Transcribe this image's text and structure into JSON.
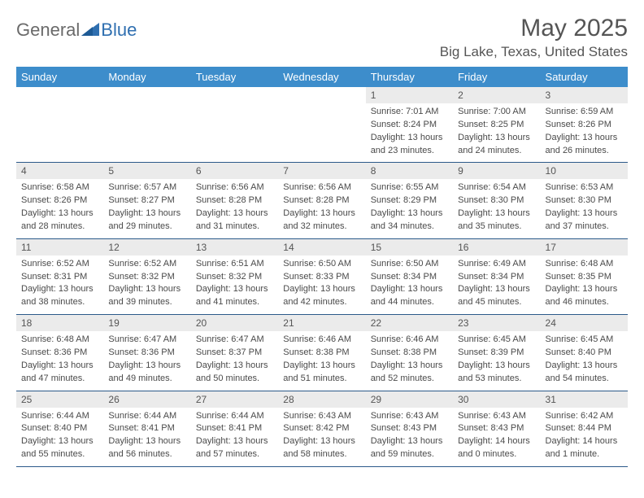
{
  "brand": {
    "part1": "General",
    "part2": "Blue"
  },
  "title": "May 2025",
  "location": "Big Lake, Texas, United States",
  "colors": {
    "header_bg": "#3d8dcb",
    "header_text": "#ffffff",
    "daynum_bg": "#ebebeb",
    "text": "#555555",
    "row_border": "#2c5a8a",
    "logo_gray": "#6a6a6a",
    "logo_blue": "#2f6fb0"
  },
  "day_headers": [
    "Sunday",
    "Monday",
    "Tuesday",
    "Wednesday",
    "Thursday",
    "Friday",
    "Saturday"
  ],
  "weeks": [
    [
      null,
      null,
      null,
      null,
      {
        "n": "1",
        "sr": "Sunrise: 7:01 AM",
        "ss": "Sunset: 8:24 PM",
        "dl1": "Daylight: 13 hours",
        "dl2": "and 23 minutes."
      },
      {
        "n": "2",
        "sr": "Sunrise: 7:00 AM",
        "ss": "Sunset: 8:25 PM",
        "dl1": "Daylight: 13 hours",
        "dl2": "and 24 minutes."
      },
      {
        "n": "3",
        "sr": "Sunrise: 6:59 AM",
        "ss": "Sunset: 8:26 PM",
        "dl1": "Daylight: 13 hours",
        "dl2": "and 26 minutes."
      }
    ],
    [
      {
        "n": "4",
        "sr": "Sunrise: 6:58 AM",
        "ss": "Sunset: 8:26 PM",
        "dl1": "Daylight: 13 hours",
        "dl2": "and 28 minutes."
      },
      {
        "n": "5",
        "sr": "Sunrise: 6:57 AM",
        "ss": "Sunset: 8:27 PM",
        "dl1": "Daylight: 13 hours",
        "dl2": "and 29 minutes."
      },
      {
        "n": "6",
        "sr": "Sunrise: 6:56 AM",
        "ss": "Sunset: 8:28 PM",
        "dl1": "Daylight: 13 hours",
        "dl2": "and 31 minutes."
      },
      {
        "n": "7",
        "sr": "Sunrise: 6:56 AM",
        "ss": "Sunset: 8:28 PM",
        "dl1": "Daylight: 13 hours",
        "dl2": "and 32 minutes."
      },
      {
        "n": "8",
        "sr": "Sunrise: 6:55 AM",
        "ss": "Sunset: 8:29 PM",
        "dl1": "Daylight: 13 hours",
        "dl2": "and 34 minutes."
      },
      {
        "n": "9",
        "sr": "Sunrise: 6:54 AM",
        "ss": "Sunset: 8:30 PM",
        "dl1": "Daylight: 13 hours",
        "dl2": "and 35 minutes."
      },
      {
        "n": "10",
        "sr": "Sunrise: 6:53 AM",
        "ss": "Sunset: 8:30 PM",
        "dl1": "Daylight: 13 hours",
        "dl2": "and 37 minutes."
      }
    ],
    [
      {
        "n": "11",
        "sr": "Sunrise: 6:52 AM",
        "ss": "Sunset: 8:31 PM",
        "dl1": "Daylight: 13 hours",
        "dl2": "and 38 minutes."
      },
      {
        "n": "12",
        "sr": "Sunrise: 6:52 AM",
        "ss": "Sunset: 8:32 PM",
        "dl1": "Daylight: 13 hours",
        "dl2": "and 39 minutes."
      },
      {
        "n": "13",
        "sr": "Sunrise: 6:51 AM",
        "ss": "Sunset: 8:32 PM",
        "dl1": "Daylight: 13 hours",
        "dl2": "and 41 minutes."
      },
      {
        "n": "14",
        "sr": "Sunrise: 6:50 AM",
        "ss": "Sunset: 8:33 PM",
        "dl1": "Daylight: 13 hours",
        "dl2": "and 42 minutes."
      },
      {
        "n": "15",
        "sr": "Sunrise: 6:50 AM",
        "ss": "Sunset: 8:34 PM",
        "dl1": "Daylight: 13 hours",
        "dl2": "and 44 minutes."
      },
      {
        "n": "16",
        "sr": "Sunrise: 6:49 AM",
        "ss": "Sunset: 8:34 PM",
        "dl1": "Daylight: 13 hours",
        "dl2": "and 45 minutes."
      },
      {
        "n": "17",
        "sr": "Sunrise: 6:48 AM",
        "ss": "Sunset: 8:35 PM",
        "dl1": "Daylight: 13 hours",
        "dl2": "and 46 minutes."
      }
    ],
    [
      {
        "n": "18",
        "sr": "Sunrise: 6:48 AM",
        "ss": "Sunset: 8:36 PM",
        "dl1": "Daylight: 13 hours",
        "dl2": "and 47 minutes."
      },
      {
        "n": "19",
        "sr": "Sunrise: 6:47 AM",
        "ss": "Sunset: 8:36 PM",
        "dl1": "Daylight: 13 hours",
        "dl2": "and 49 minutes."
      },
      {
        "n": "20",
        "sr": "Sunrise: 6:47 AM",
        "ss": "Sunset: 8:37 PM",
        "dl1": "Daylight: 13 hours",
        "dl2": "and 50 minutes."
      },
      {
        "n": "21",
        "sr": "Sunrise: 6:46 AM",
        "ss": "Sunset: 8:38 PM",
        "dl1": "Daylight: 13 hours",
        "dl2": "and 51 minutes."
      },
      {
        "n": "22",
        "sr": "Sunrise: 6:46 AM",
        "ss": "Sunset: 8:38 PM",
        "dl1": "Daylight: 13 hours",
        "dl2": "and 52 minutes."
      },
      {
        "n": "23",
        "sr": "Sunrise: 6:45 AM",
        "ss": "Sunset: 8:39 PM",
        "dl1": "Daylight: 13 hours",
        "dl2": "and 53 minutes."
      },
      {
        "n": "24",
        "sr": "Sunrise: 6:45 AM",
        "ss": "Sunset: 8:40 PM",
        "dl1": "Daylight: 13 hours",
        "dl2": "and 54 minutes."
      }
    ],
    [
      {
        "n": "25",
        "sr": "Sunrise: 6:44 AM",
        "ss": "Sunset: 8:40 PM",
        "dl1": "Daylight: 13 hours",
        "dl2": "and 55 minutes."
      },
      {
        "n": "26",
        "sr": "Sunrise: 6:44 AM",
        "ss": "Sunset: 8:41 PM",
        "dl1": "Daylight: 13 hours",
        "dl2": "and 56 minutes."
      },
      {
        "n": "27",
        "sr": "Sunrise: 6:44 AM",
        "ss": "Sunset: 8:41 PM",
        "dl1": "Daylight: 13 hours",
        "dl2": "and 57 minutes."
      },
      {
        "n": "28",
        "sr": "Sunrise: 6:43 AM",
        "ss": "Sunset: 8:42 PM",
        "dl1": "Daylight: 13 hours",
        "dl2": "and 58 minutes."
      },
      {
        "n": "29",
        "sr": "Sunrise: 6:43 AM",
        "ss": "Sunset: 8:43 PM",
        "dl1": "Daylight: 13 hours",
        "dl2": "and 59 minutes."
      },
      {
        "n": "30",
        "sr": "Sunrise: 6:43 AM",
        "ss": "Sunset: 8:43 PM",
        "dl1": "Daylight: 14 hours",
        "dl2": "and 0 minutes."
      },
      {
        "n": "31",
        "sr": "Sunrise: 6:42 AM",
        "ss": "Sunset: 8:44 PM",
        "dl1": "Daylight: 14 hours",
        "dl2": "and 1 minute."
      }
    ]
  ]
}
